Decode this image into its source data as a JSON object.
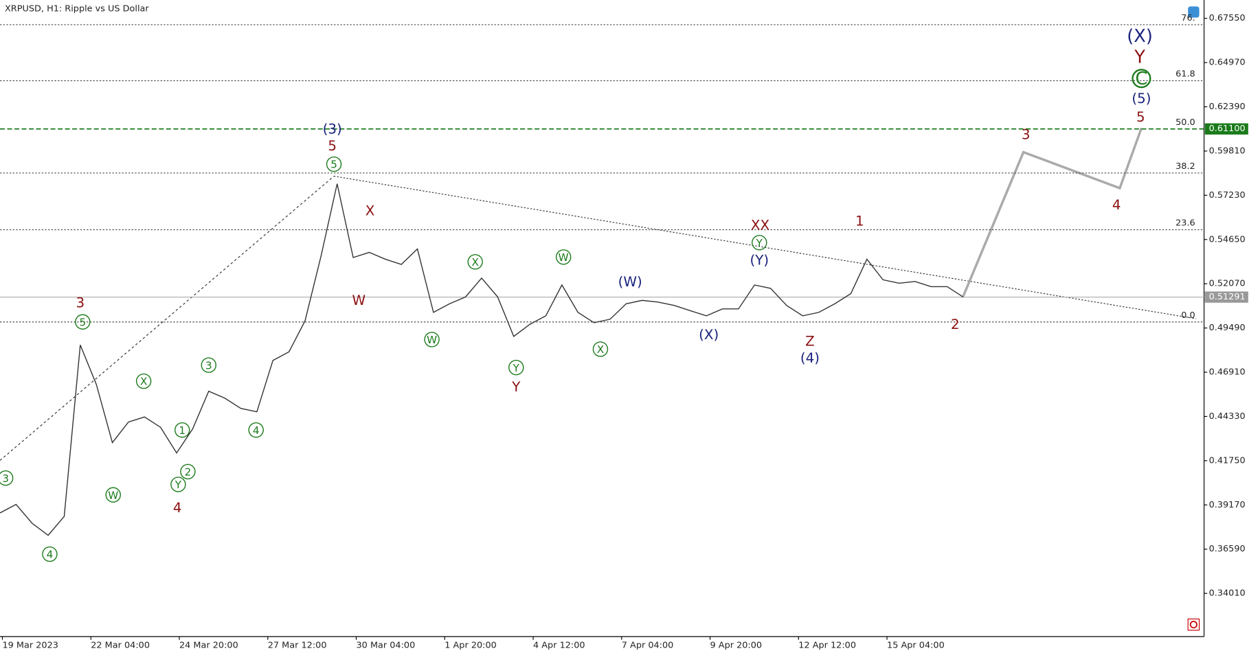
{
  "chart_data": {
    "type": "line",
    "title": "XRPUSD, H1:  Ripple vs US Dollar",
    "series": [
      {
        "color": "#333333",
        "values": [
          0.387,
          0.392,
          0.381,
          0.374,
          0.385,
          0.485,
          0.462,
          0.428,
          0.44,
          0.443,
          0.437,
          0.422,
          0.436,
          0.458,
          0.454,
          0.448,
          0.446,
          0.476,
          0.481,
          0.499,
          0.537,
          0.579,
          0.536,
          0.539,
          0.535,
          0.532,
          0.541,
          0.504,
          0.509,
          0.513,
          0.524,
          0.513,
          0.49,
          0.497,
          0.502,
          0.52,
          0.504,
          0.498,
          0.5,
          0.509,
          0.511,
          0.51,
          0.508,
          0.505,
          0.502,
          0.506,
          0.506,
          0.52,
          0.518,
          0.508,
          0.502,
          0.504,
          0.509,
          0.515,
          0.535,
          0.523,
          0.521,
          0.522,
          0.519,
          0.519,
          0.51291
        ]
      }
    ],
    "ylim": [
      0.3149,
      0.6862
    ],
    "yticks": [
      {
        "value": 0.6755,
        "label": "0.67550"
      },
      {
        "value": 0.6497,
        "label": "0.64970"
      },
      {
        "value": 0.6239,
        "label": "0.62390"
      },
      {
        "value": 0.5981,
        "label": "0.59810"
      },
      {
        "value": 0.5723,
        "label": "0.57230"
      },
      {
        "value": 0.5465,
        "label": "0.54650"
      },
      {
        "value": 0.5207,
        "label": "0.52070"
      },
      {
        "value": 0.4949,
        "label": "0.49490"
      },
      {
        "value": 0.4691,
        "label": "0.46910"
      },
      {
        "value": 0.4433,
        "label": "0.44330"
      },
      {
        "value": 0.4175,
        "label": "0.41750"
      },
      {
        "value": 0.3917,
        "label": "0.39170"
      },
      {
        "value": 0.3659,
        "label": "0.36590"
      },
      {
        "value": 0.3401,
        "label": "0.34010"
      }
    ],
    "time_labels": [
      "19 Mar 2023",
      "22 Mar 04:00",
      "24 Mar 20:00",
      "27 Mar 12:00",
      "30 Mar 04:00",
      "1 Apr 20:00",
      "4 Apr 12:00",
      "7 Apr 04:00",
      "9 Apr 20:00",
      "12 Apr 12:00",
      "15 Apr 04:00"
    ],
    "fib_levels": [
      {
        "level": "76.",
        "price": 0.6718
      },
      {
        "level": "61.8",
        "price": 0.6391
      },
      {
        "level": "50.0",
        "price": 0.611
      },
      {
        "level": "38.2",
        "price": 0.5853
      },
      {
        "level": "23.6",
        "price": 0.5522
      },
      {
        "level": "0.0",
        "price": 0.4984
      }
    ],
    "target_price": {
      "value": 0.611,
      "label": "0.61100"
    },
    "current_price": 0.51291,
    "wave_labels": [
      {
        "text": "3",
        "color": "green"
      },
      {
        "text": "3",
        "color": "darkred"
      },
      {
        "text": "5",
        "color": "green"
      },
      {
        "text": "X",
        "color": "green"
      },
      {
        "text": "W",
        "color": "green"
      },
      {
        "text": "3",
        "color": "green"
      },
      {
        "text": "1",
        "color": "green"
      },
      {
        "text": "2",
        "color": "green"
      },
      {
        "text": "Y",
        "color": "green"
      },
      {
        "text": "4",
        "color": "darkred"
      },
      {
        "text": "4",
        "color": "green"
      },
      {
        "text": "4",
        "color": "green"
      },
      {
        "text": "(3)",
        "color": "navy"
      },
      {
        "text": "5",
        "color": "darkred"
      },
      {
        "text": "5",
        "color": "green"
      },
      {
        "text": "X",
        "color": "darkred"
      },
      {
        "text": "W",
        "color": "darkred"
      },
      {
        "text": "X",
        "color": "green"
      },
      {
        "text": "W",
        "color": "green"
      },
      {
        "text": "Y",
        "color": "green"
      },
      {
        "text": "Y",
        "color": "darkred"
      },
      {
        "text": "W",
        "color": "green"
      },
      {
        "text": "X",
        "color": "green"
      },
      {
        "text": "(W)",
        "color": "navy"
      },
      {
        "text": "(X)",
        "color": "navy"
      },
      {
        "text": "XX",
        "color": "darkred"
      },
      {
        "text": "Y",
        "color": "green"
      },
      {
        "text": "(Y)",
        "color": "navy"
      },
      {
        "text": "Z",
        "color": "darkred"
      },
      {
        "text": "(4)",
        "color": "navy"
      },
      {
        "text": "1",
        "color": "darkred"
      },
      {
        "text": "2",
        "color": "darkred"
      },
      {
        "text": "3",
        "color": "darkred"
      },
      {
        "text": "4",
        "color": "darkred"
      },
      {
        "text": "5",
        "color": "darkred"
      },
      {
        "text": "(5)",
        "color": "navy"
      },
      {
        "text": "C",
        "color": "green"
      },
      {
        "text": "Y",
        "color": "darkred"
      },
      {
        "text": "(X)",
        "color": "navy"
      }
    ]
  }
}
